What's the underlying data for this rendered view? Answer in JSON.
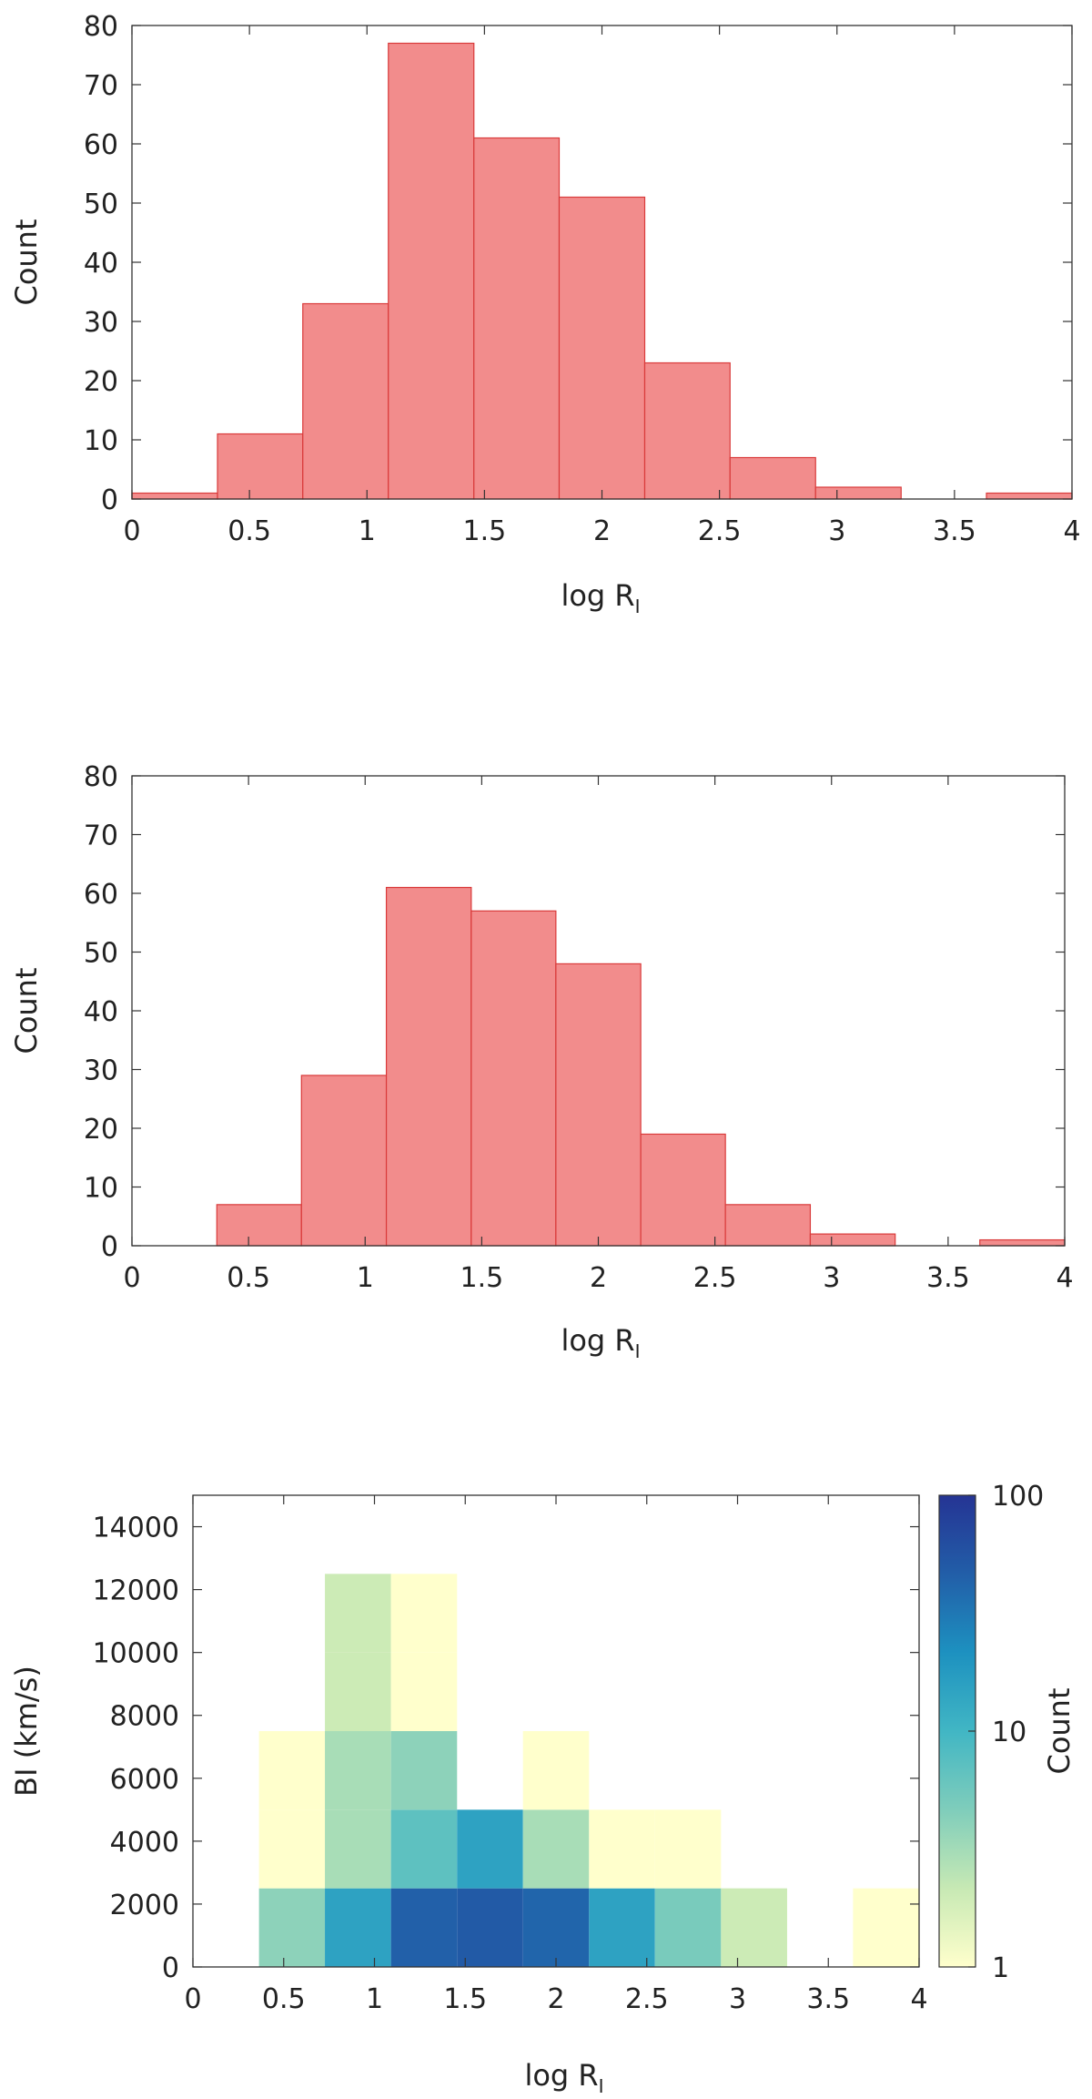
{
  "chart_data": [
    {
      "type": "bar",
      "bin_edges": [
        0,
        0.364,
        0.727,
        1.091,
        1.455,
        1.818,
        2.182,
        2.545,
        2.909,
        3.273,
        3.636,
        4
      ],
      "values": [
        1,
        11,
        33,
        77,
        61,
        51,
        23,
        7,
        2,
        0,
        1
      ],
      "xlabel": "log R",
      "xlabel_sub": "I",
      "ylabel": "Count",
      "xlim": [
        0,
        4
      ],
      "ylim": [
        0,
        80
      ],
      "xticks": [
        0,
        0.5,
        1,
        1.5,
        2,
        2.5,
        3,
        3.5,
        4
      ],
      "xtick_labels": [
        "0",
        "0.5",
        "1",
        "1.5",
        "2",
        "2.5",
        "3",
        "3.5",
        "4"
      ],
      "yticks": [
        0,
        10,
        20,
        30,
        40,
        50,
        60,
        70,
        80
      ],
      "ytick_labels": [
        "0",
        "10",
        "20",
        "30",
        "40",
        "50",
        "60",
        "70",
        "80"
      ],
      "fill_color": "#f28c8c",
      "edge_color": "#d93a3a"
    },
    {
      "type": "bar",
      "bin_edges": [
        0,
        0.364,
        0.727,
        1.091,
        1.455,
        1.818,
        2.182,
        2.545,
        2.909,
        3.273,
        3.636,
        4
      ],
      "values": [
        0,
        7,
        29,
        61,
        57,
        48,
        19,
        7,
        2,
        0,
        1
      ],
      "xlabel": "log R",
      "xlabel_sub": "I",
      "ylabel": "Count",
      "xlim": [
        0,
        4
      ],
      "ylim": [
        0,
        80
      ],
      "xticks": [
        0,
        0.5,
        1,
        1.5,
        2,
        2.5,
        3,
        3.5,
        4
      ],
      "xtick_labels": [
        "0",
        "0.5",
        "1",
        "1.5",
        "2",
        "2.5",
        "3",
        "3.5",
        "4"
      ],
      "yticks": [
        0,
        10,
        20,
        30,
        40,
        50,
        60,
        70,
        80
      ],
      "ytick_labels": [
        "0",
        "10",
        "20",
        "30",
        "40",
        "50",
        "60",
        "70",
        "80"
      ],
      "fill_color": "#f28c8c",
      "edge_color": "#d93a3a"
    },
    {
      "type": "heatmap",
      "x_edges": [
        0,
        0.364,
        0.727,
        1.091,
        1.455,
        1.818,
        2.182,
        2.545,
        2.909,
        3.273,
        3.636,
        4
      ],
      "y_edges": [
        0,
        2500,
        5000,
        7500,
        10000,
        12500
      ],
      "cells": [
        {
          "x": 1,
          "y": 0,
          "count": 4
        },
        {
          "x": 2,
          "y": 0,
          "count": 15
        },
        {
          "x": 3,
          "y": 0,
          "count": 45
        },
        {
          "x": 4,
          "y": 0,
          "count": 50
        },
        {
          "x": 5,
          "y": 0,
          "count": 42
        },
        {
          "x": 6,
          "y": 0,
          "count": 15
        },
        {
          "x": 7,
          "y": 0,
          "count": 5
        },
        {
          "x": 8,
          "y": 0,
          "count": 2
        },
        {
          "x": 10,
          "y": 0,
          "count": 1
        },
        {
          "x": 1,
          "y": 1,
          "count": 1
        },
        {
          "x": 2,
          "y": 1,
          "count": 3
        },
        {
          "x": 3,
          "y": 1,
          "count": 7
        },
        {
          "x": 4,
          "y": 1,
          "count": 15
        },
        {
          "x": 5,
          "y": 1,
          "count": 3
        },
        {
          "x": 6,
          "y": 1,
          "count": 1
        },
        {
          "x": 7,
          "y": 1,
          "count": 1
        },
        {
          "x": 1,
          "y": 2,
          "count": 1
        },
        {
          "x": 2,
          "y": 2,
          "count": 3
        },
        {
          "x": 3,
          "y": 2,
          "count": 4
        },
        {
          "x": 5,
          "y": 2,
          "count": 1
        },
        {
          "x": 2,
          "y": 3,
          "count": 2
        },
        {
          "x": 3,
          "y": 3,
          "count": 1
        },
        {
          "x": 2,
          "y": 4,
          "count": 2
        },
        {
          "x": 3,
          "y": 4,
          "count": 1
        }
      ],
      "xlabel": "log R",
      "xlabel_sub": "I",
      "ylabel": "BI (km/s)",
      "xlim": [
        0,
        4
      ],
      "ylim": [
        0,
        15000
      ],
      "xticks": [
        0,
        0.5,
        1,
        1.5,
        2,
        2.5,
        3,
        3.5,
        4
      ],
      "xtick_labels": [
        "0",
        "0.5",
        "1",
        "1.5",
        "2",
        "2.5",
        "3",
        "3.5",
        "4"
      ],
      "yticks": [
        0,
        2000,
        4000,
        6000,
        8000,
        10000,
        12000,
        14000
      ],
      "ytick_labels": [
        "0",
        "2000",
        "4000",
        "6000",
        "8000",
        "10000",
        "12000",
        "14000"
      ],
      "colorbar": {
        "label": "Count",
        "scale": "log",
        "range": [
          1,
          100
        ],
        "ticks": [
          1,
          10,
          100
        ],
        "tick_labels": [
          "1",
          "10",
          "100"
        ],
        "colors": [
          "#ffffcc",
          "#c7e9b4",
          "#7fcdbb",
          "#41b6c4",
          "#1d91c0",
          "#225ea8",
          "#253494"
        ]
      }
    }
  ]
}
